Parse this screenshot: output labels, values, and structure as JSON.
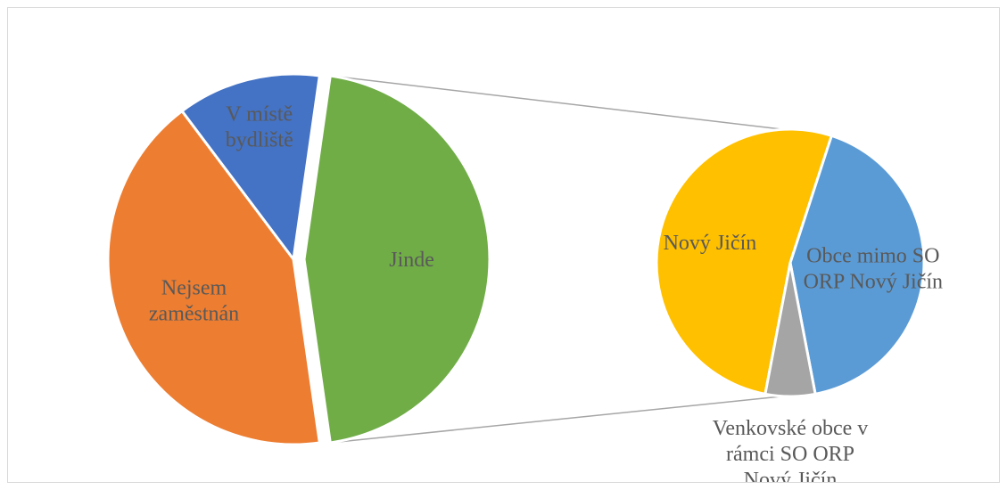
{
  "chart_data": {
    "type": "pie",
    "subtype": "pie-of-pie",
    "title": "",
    "legend": "none",
    "primary": {
      "slices": [
        {
          "label": "Nejsem zaměstnán",
          "value": 42.0,
          "color": "#ED7D31"
        },
        {
          "label": "V místě bydliště",
          "value": 12.5,
          "color": "#4472C4"
        },
        {
          "label": "Jinde",
          "value": 45.5,
          "color": "#70AD47"
        }
      ]
    },
    "secondary": {
      "source_slice": "Jinde",
      "slices": [
        {
          "label": "Nový Jičín",
          "value": 52.0,
          "color": "#FFC000"
        },
        {
          "label": "Obce mimo SO ORP Nový Jičín",
          "value": 42.0,
          "color": "#5B9BD5"
        },
        {
          "label": "Venkovské obce v rámci SO ORP Nový Jičín",
          "value": 6.0,
          "color": "#A5A5A5"
        }
      ]
    }
  }
}
